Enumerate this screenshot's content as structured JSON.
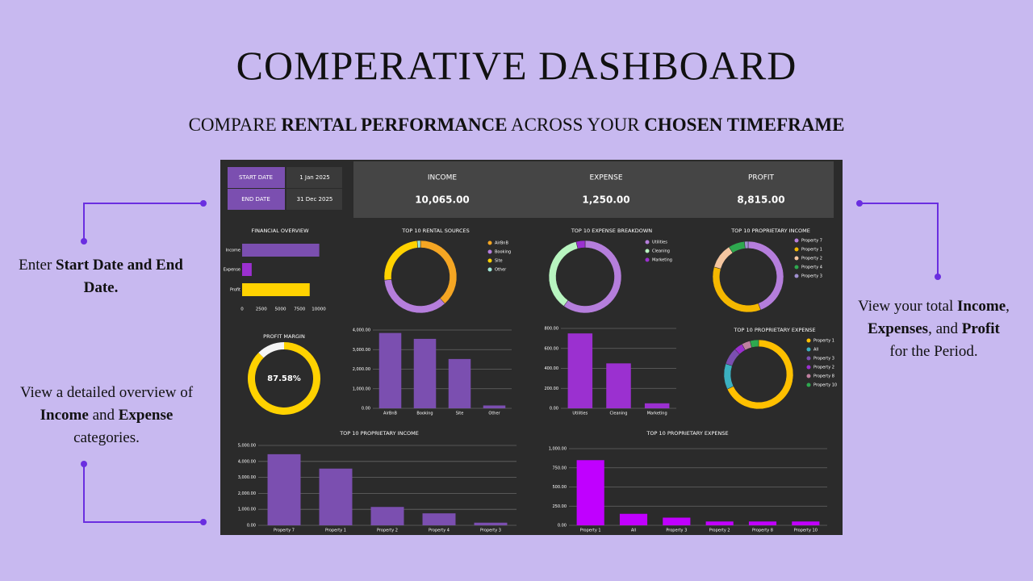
{
  "header": {
    "title": "COMPERATIVE DASHBOARD",
    "subtitle": [
      {
        "text": "COMPARE ",
        "bold": false
      },
      {
        "text": "RENTAL PERFORMANCE",
        "bold": true
      },
      {
        "text": " ACROSS YOUR ",
        "bold": false
      },
      {
        "text": "CHOSEN TIMEFRAME",
        "bold": true
      }
    ]
  },
  "callouts": [
    {
      "segments": [
        {
          "text": "Enter ",
          "bold": false
        },
        {
          "text": "Start Date and End Date.",
          "bold": true
        }
      ]
    },
    {
      "segments": [
        {
          "text": "View a detailed overview of ",
          "bold": false
        },
        {
          "text": "Income",
          "bold": true
        },
        {
          "text": " and ",
          "bold": false
        },
        {
          "text": "Expense",
          "bold": true
        },
        {
          "text": " categories.",
          "bold": false
        }
      ]
    },
    {
      "segments": [
        {
          "text": "View your total ",
          "bold": false
        },
        {
          "text": "Income",
          "bold": true
        },
        {
          "text": ",  ",
          "bold": false
        },
        {
          "text": "Expenses",
          "bold": true
        },
        {
          "text": ", and ",
          "bold": false
        },
        {
          "text": "Profit",
          "bold": true
        },
        {
          "text": " for the Period.",
          "bold": false
        }
      ]
    }
  ],
  "dashboard": {
    "dates": [
      {
        "label": "START DATE",
        "value": "1 Jan 2025"
      },
      {
        "label": "END DATE",
        "value": "31 Dec 2025"
      }
    ],
    "kpis": [
      {
        "label": "INCOME",
        "value": "10,065.00"
      },
      {
        "label": "EXPENSE",
        "value": "1,250.00"
      },
      {
        "label": "PROFIT",
        "value": "8,815.00"
      }
    ],
    "charts": [
      {
        "type": "hbar",
        "title": "FINANCIAL OVERVIEW",
        "categories": [
          "Income",
          "Expense",
          "Profit"
        ],
        "values": [
          10065,
          1250,
          8815
        ],
        "colors": [
          "#7b4fb0",
          "#9b30d0",
          "#ffd200"
        ],
        "xlim": [
          0,
          10000
        ],
        "xticks": [
          0,
          2500,
          5000,
          7500,
          10000
        ]
      },
      {
        "type": "donut",
        "title": "TOP 10 RENTAL SOURCES",
        "categories": [
          "AirBnB",
          "Booking",
          "Site",
          "Other"
        ],
        "values": [
          3850,
          3550,
          2520,
          145
        ],
        "colors": [
          "#f5a623",
          "#b57edc",
          "#ffd200",
          "#a0e8d8"
        ]
      },
      {
        "type": "donut",
        "title": "TOP 10 EXPENSE BREAKDOWN",
        "categories": [
          "Utilities",
          "Cleaning",
          "Marketing"
        ],
        "values": [
          750,
          450,
          50
        ],
        "colors": [
          "#b57edc",
          "#b8f5c0",
          "#9b30d0"
        ]
      },
      {
        "type": "donut",
        "title": "TOP 10 PROPRIETARY INCOME",
        "categories": [
          "Property 7",
          "Property 1",
          "Property 2",
          "Property 4",
          "Property 3"
        ],
        "values": [
          4450,
          3550,
          1150,
          750,
          165
        ],
        "colors": [
          "#b57edc",
          "#f5b800",
          "#f5c6a0",
          "#2ea84f",
          "#a090d0"
        ]
      },
      {
        "type": "gauge",
        "title": "PROFIT MARGIN",
        "value": 87.58,
        "value_label": "87.58%",
        "ylim": [
          0,
          100
        ],
        "color": "#ffd200"
      },
      {
        "type": "vbar",
        "categories": [
          "AirBnB",
          "Booking",
          "Site",
          "Other"
        ],
        "values": [
          3850,
          3550,
          2520,
          145
        ],
        "color": "#7b4fb0",
        "ylim": [
          0,
          4000
        ],
        "yticks": [
          {
            "value": 0,
            "label": "0.00"
          },
          {
            "value": 1000,
            "label": "1,000.00"
          },
          {
            "value": 2000,
            "label": "2,000.00"
          },
          {
            "value": 3000,
            "label": "3,000.00"
          },
          {
            "value": 4000,
            "label": "4,000.00"
          }
        ]
      },
      {
        "type": "vbar",
        "categories": [
          "Utilities",
          "Cleaning",
          "Marketing"
        ],
        "values": [
          750,
          450,
          50
        ],
        "color": "#9b30d0",
        "ylim": [
          0,
          800
        ],
        "yticks": [
          {
            "value": 0,
            "label": "0.00"
          },
          {
            "value": 200,
            "label": "200.00"
          },
          {
            "value": 400,
            "label": "400.00"
          },
          {
            "value": 600,
            "label": "600.00"
          },
          {
            "value": 800,
            "label": "800.00"
          }
        ]
      },
      {
        "type": "donut",
        "title": "TOP 10 PROPRIETARY EXPENSE",
        "categories": [
          "Property 1",
          "All",
          "Property 3",
          "Property 2",
          "Property 8",
          "Property 10"
        ],
        "values": [
          850,
          150,
          100,
          50,
          50,
          50
        ],
        "colors": [
          "#ffc000",
          "#3bb0c0",
          "#7b4fb0",
          "#9b30d0",
          "#c080a0",
          "#2ea84f"
        ]
      },
      {
        "type": "vbar",
        "title": "TOP 10 PROPRIETARY INCOME",
        "categories": [
          "Property 7",
          "Property 1",
          "Property 2",
          "Property 4",
          "Property 3"
        ],
        "values": [
          4450,
          3550,
          1150,
          750,
          165
        ],
        "color": "#7b4fb0",
        "ylim": [
          0,
          5000
        ],
        "yticks": [
          {
            "value": 0,
            "label": "0.00"
          },
          {
            "value": 1000,
            "label": "1,000.00"
          },
          {
            "value": 2000,
            "label": "2,000.00"
          },
          {
            "value": 3000,
            "label": "3,000.00"
          },
          {
            "value": 4000,
            "label": "4,000.00"
          },
          {
            "value": 5000,
            "label": "5,000.00"
          }
        ]
      },
      {
        "type": "vbar",
        "title": "TOP 10 PROPRIETARY EXPENSE",
        "categories": [
          "Property 1",
          "All",
          "Property 3",
          "Property 2",
          "Property 8",
          "Property 10"
        ],
        "values": [
          850,
          150,
          100,
          50,
          50,
          50
        ],
        "color": "#c000ff",
        "ylim": [
          0,
          1000
        ],
        "yticks": [
          {
            "value": 0,
            "label": "0.00"
          },
          {
            "value": 250,
            "label": "250.00"
          },
          {
            "value": 500,
            "label": "500.00"
          },
          {
            "value": 750,
            "label": "750.00"
          },
          {
            "value": 1000,
            "label": "1,000.00"
          }
        ]
      }
    ]
  }
}
